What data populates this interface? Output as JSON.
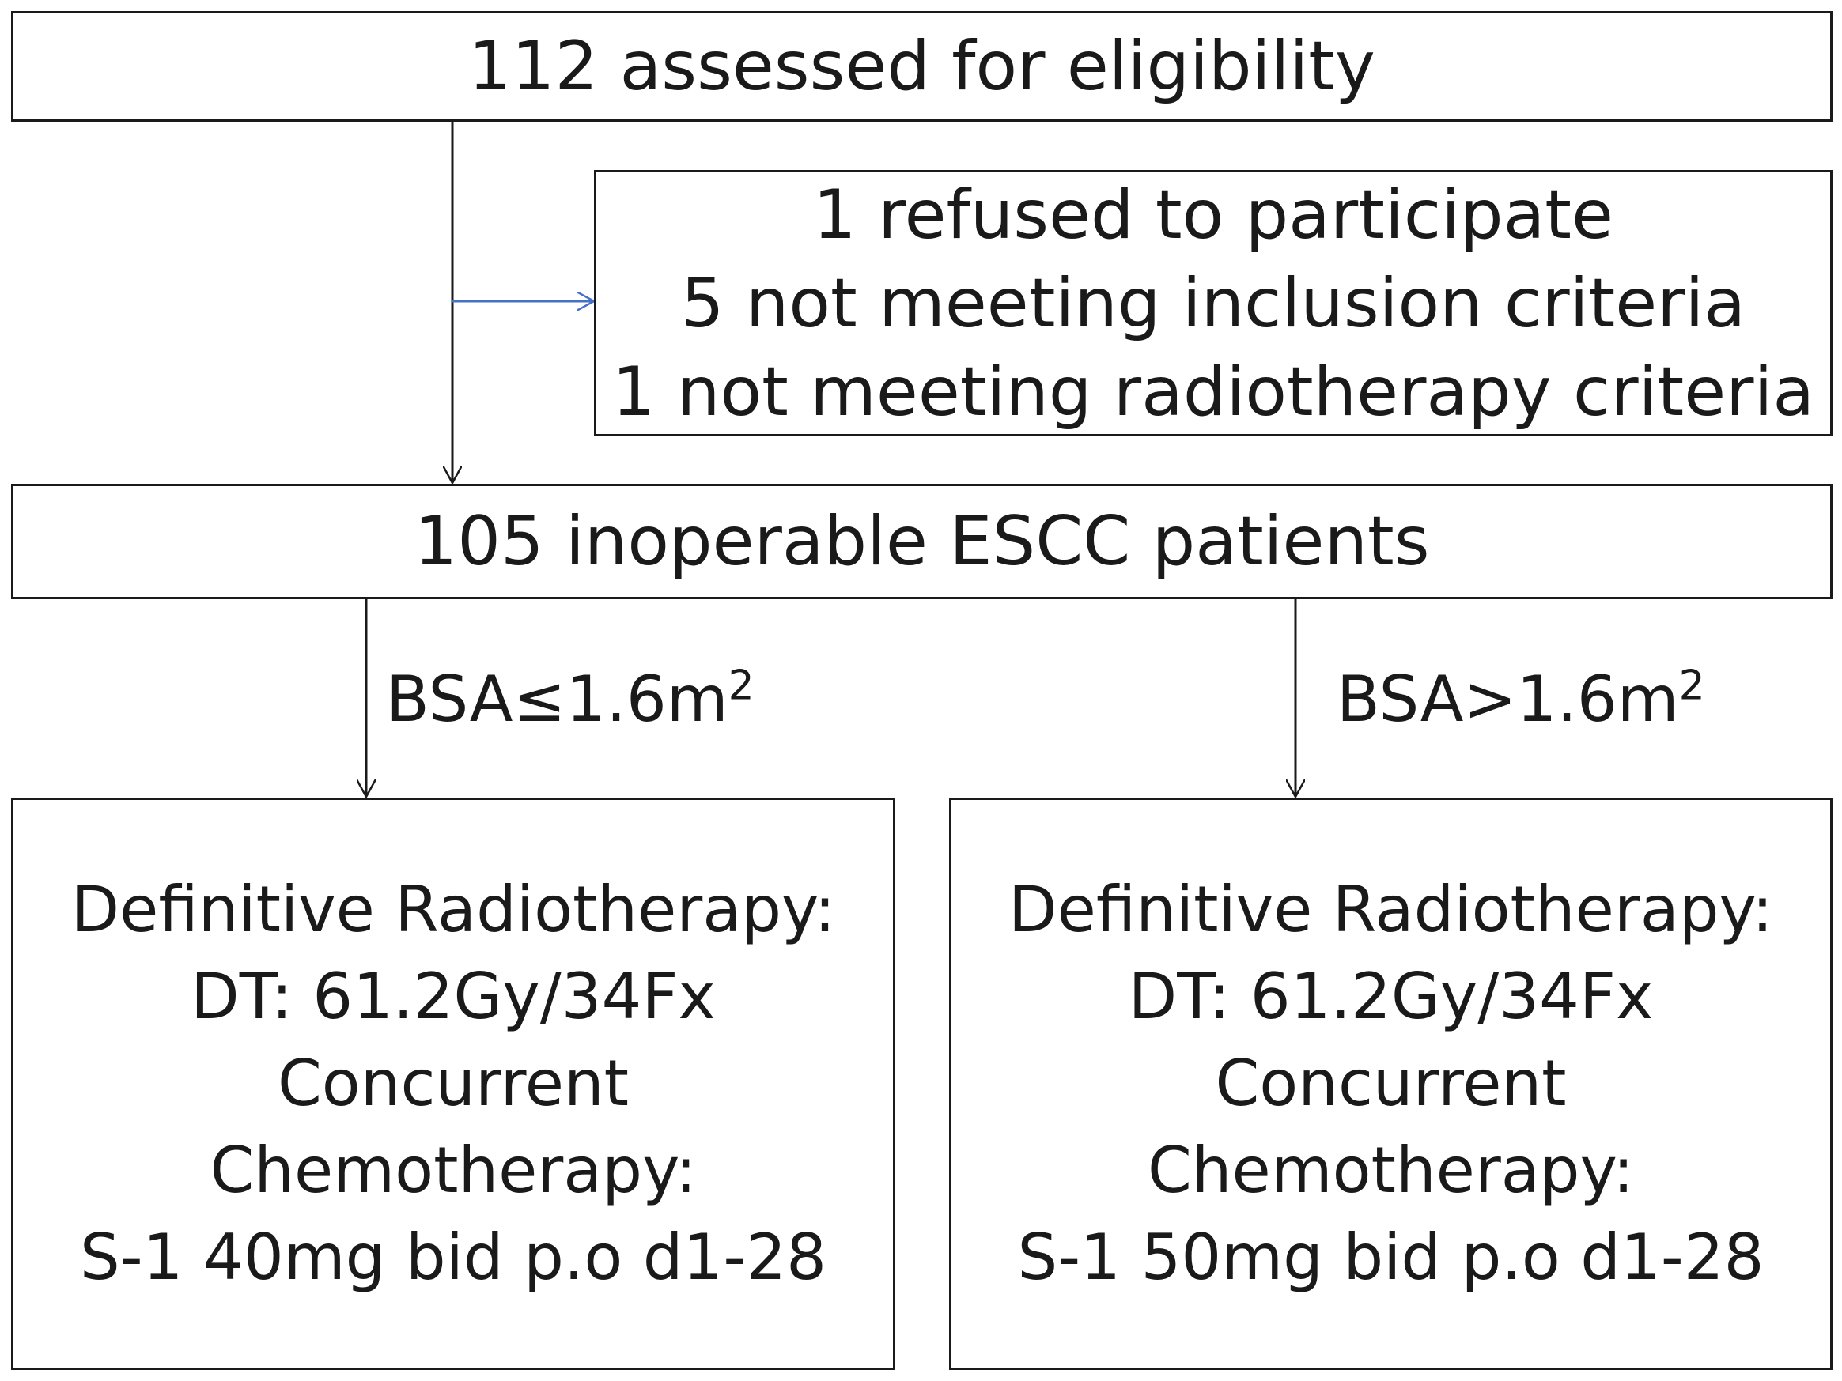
{
  "top_box": {
    "text": "112 assessed for eligibility"
  },
  "exclusion_box": {
    "lines": [
      "1 refused to participate",
      "5 not meeting inclusion criteria",
      "1 not meeting radiotherapy criteria"
    ]
  },
  "middle_box": {
    "text": "105 inoperable ESCC patients"
  },
  "branch_left": {
    "label_main": "BSA≤1.6m",
    "label_sup": "2"
  },
  "branch_right": {
    "label_main": "BSA>1.6m",
    "label_sup": "2"
  },
  "left_box": {
    "lines": [
      "Definitive Radiotherapy:",
      "DT: 61.2Gy/34Fx",
      "Concurrent",
      "Chemotherapy:",
      "S-1 40mg bid p.o d1-28"
    ]
  },
  "right_box": {
    "lines": [
      "Definitive Radiotherapy:",
      "DT: 61.2Gy/34Fx",
      "Concurrent",
      "Chemotherapy:",
      "S-1 50mg bid p.o d1-28"
    ]
  },
  "colors": {
    "line": "#1a1a1a",
    "exclusion_arrow": "#4472c4"
  }
}
